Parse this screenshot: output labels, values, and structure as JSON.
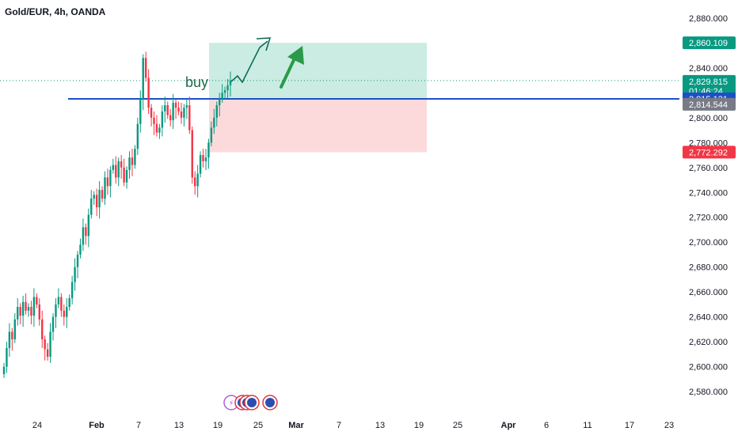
{
  "header": {
    "title": "Gold/EUR, 4h, OANDA"
  },
  "annotation": {
    "text": "buy",
    "color": "#1f6b4a"
  },
  "colors": {
    "up": "#089981",
    "down": "#f23645",
    "profit_zone": "#b9e6d8",
    "loss_zone": "#fcd3d6",
    "support_line": "#1e4fc8",
    "arrow": "#2a9a4a",
    "current_line": "#089981",
    "axis_text": "#131722"
  },
  "price_tags": [
    {
      "label": "2,860.109",
      "value": 2860.109,
      "color": "#089981"
    },
    {
      "label": "2,829.815",
      "value": 2829.815,
      "color": "#089981",
      "sub": "01:46:24"
    },
    {
      "label": "2,815.131",
      "value": 2815.131,
      "color": "#1e4fc8"
    },
    {
      "label": "2,814.544",
      "value": 2814.544,
      "color": "#787b86"
    },
    {
      "label": "2,772.292",
      "value": 2772.292,
      "color": "#f23645"
    }
  ],
  "chart_data": {
    "type": "candlestick",
    "instrument": "Gold/EUR",
    "interval": "4h",
    "source": "OANDA",
    "y_ticks": [
      "2,880.000",
      "2,860.000",
      "2,840.000",
      "2,820.000",
      "2,800.000",
      "2,780.000",
      "2,760.000",
      "2,740.000",
      "2,720.000",
      "2,700.000",
      "2,680.000",
      "2,660.000",
      "2,640.000",
      "2,620.000",
      "2,600.000",
      "2,580.000"
    ],
    "ylim": [
      2575,
      2885
    ],
    "x_ticks": [
      {
        "label": "24",
        "bold": false
      },
      {
        "label": "Feb",
        "bold": true
      },
      {
        "label": "7",
        "bold": false
      },
      {
        "label": "13",
        "bold": false
      },
      {
        "label": "19",
        "bold": false
      },
      {
        "label": "25",
        "bold": false
      },
      {
        "label": "Mar",
        "bold": true
      },
      {
        "label": "7",
        "bold": false
      },
      {
        "label": "13",
        "bold": false
      },
      {
        "label": "19",
        "bold": false
      },
      {
        "label": "25",
        "bold": false
      },
      {
        "label": "Apr",
        "bold": true
      },
      {
        "label": "6",
        "bold": false
      },
      {
        "label": "11",
        "bold": false
      },
      {
        "label": "17",
        "bold": false
      },
      {
        "label": "23",
        "bold": false
      }
    ],
    "candles_close": [
      2600,
      2615,
      2628,
      2622,
      2638,
      2648,
      2641,
      2652,
      2645,
      2648,
      2641,
      2656,
      2650,
      2638,
      2622,
      2614,
      2608,
      2628,
      2640,
      2650,
      2656,
      2645,
      2640,
      2648,
      2655,
      2668,
      2680,
      2690,
      2698,
      2712,
      2705,
      2722,
      2735,
      2738,
      2728,
      2742,
      2735,
      2752,
      2745,
      2758,
      2762,
      2752,
      2765,
      2760,
      2748,
      2758,
      2768,
      2762,
      2775,
      2795,
      2815,
      2848,
      2832,
      2808,
      2800,
      2795,
      2788,
      2792,
      2805,
      2810,
      2802,
      2798,
      2812,
      2808,
      2805,
      2800,
      2808,
      2810,
      2790,
      2752,
      2745,
      2755,
      2770,
      2765,
      2768,
      2780,
      2792,
      2800,
      2810,
      2815,
      2820,
      2822,
      2826,
      2830
    ],
    "current_price": 2829.815,
    "countdown": "01:46:24",
    "support_level": 2815.131,
    "position": {
      "entry": 2815.131,
      "take_profit": 2860.109,
      "stop_loss": 2772.292
    }
  }
}
